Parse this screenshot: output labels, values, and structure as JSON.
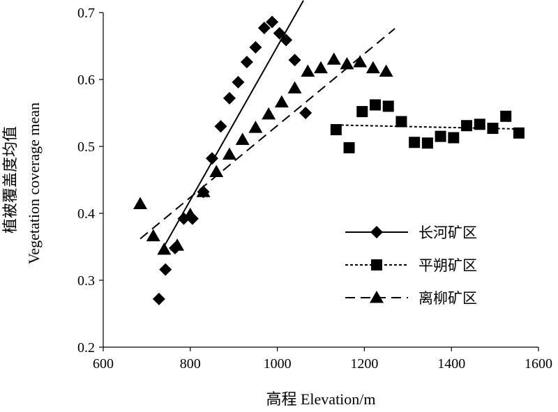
{
  "chart_data": {
    "type": "scatter",
    "xlabel": "高程 Elevation/m",
    "ylabel_cn": "植被覆盖度均值",
    "ylabel_en": "Vegetation coverage mean",
    "xlim": [
      600,
      1600
    ],
    "ylim": [
      0.2,
      0.7
    ],
    "xticks": [
      600,
      800,
      1000,
      1200,
      1400,
      1600
    ],
    "yticks": [
      0.2,
      0.3,
      0.4,
      0.5,
      0.6,
      0.7
    ],
    "ytick_labels": [
      "0.2",
      "0.3",
      "0.4",
      "0.5",
      "0.6",
      "0.7"
    ],
    "legend_position": "bottom-right",
    "series": [
      {
        "name": "长河矿区",
        "marker": "diamond",
        "line": "solid",
        "x": [
          728,
          743,
          765,
          785,
          805,
          830,
          850,
          870,
          890,
          910,
          930,
          950,
          970,
          988,
          1005,
          1020,
          1040,
          1065
        ],
        "y": [
          0.272,
          0.316,
          0.348,
          0.392,
          0.392,
          0.432,
          0.482,
          0.53,
          0.572,
          0.596,
          0.626,
          0.648,
          0.677,
          0.686,
          0.669,
          0.659,
          0.629,
          0.55
        ],
        "trend": {
          "x": [
            735,
            1060
          ],
          "y": [
            0.345,
            0.718
          ]
        }
      },
      {
        "name": "平朔矿区",
        "marker": "square",
        "line": "dotted",
        "x": [
          1135,
          1165,
          1195,
          1225,
          1255,
          1285,
          1315,
          1345,
          1375,
          1405,
          1435,
          1465,
          1495,
          1525,
          1555
        ],
        "y": [
          0.525,
          0.498,
          0.552,
          0.562,
          0.56,
          0.537,
          0.506,
          0.505,
          0.515,
          0.513,
          0.531,
          0.533,
          0.527,
          0.545,
          0.52
        ],
        "trend": {
          "x": [
            1135,
            1555
          ],
          "y": [
            0.532,
            0.526
          ]
        }
      },
      {
        "name": "离柳矿区",
        "marker": "triangle",
        "line": "dashed",
        "x": [
          685,
          715,
          740,
          770,
          800,
          830,
          860,
          890,
          920,
          950,
          980,
          1010,
          1040,
          1070,
          1100,
          1130,
          1160,
          1190,
          1220,
          1250
        ],
        "y": [
          0.414,
          0.366,
          0.346,
          0.352,
          0.398,
          0.432,
          0.462,
          0.488,
          0.51,
          0.528,
          0.548,
          0.566,
          0.587,
          0.612,
          0.617,
          0.63,
          0.623,
          0.626,
          0.617,
          0.612
        ],
        "trend": {
          "x": [
            685,
            1270
          ],
          "y": [
            0.362,
            0.676
          ]
        }
      }
    ]
  }
}
